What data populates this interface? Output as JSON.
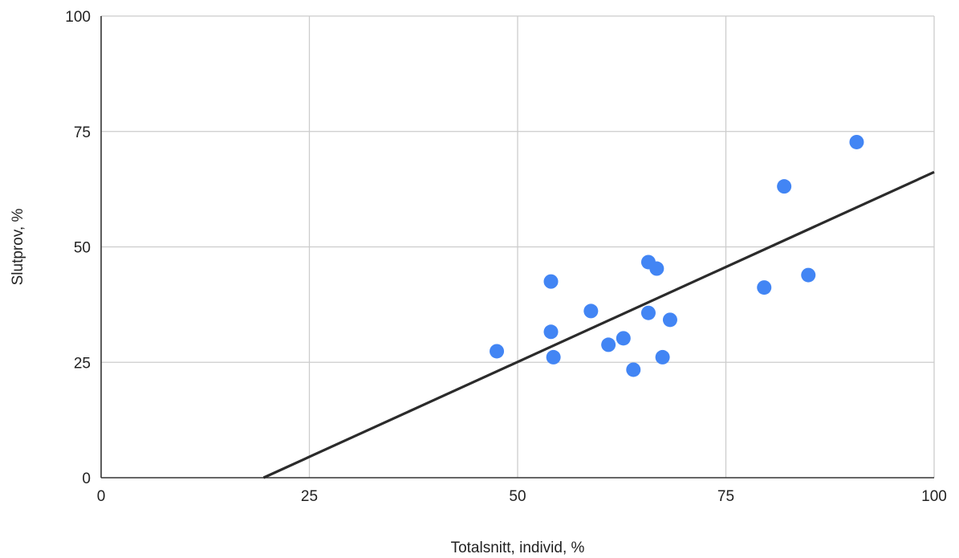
{
  "chart_data": {
    "type": "scatter",
    "title": "",
    "xlabel": "Totalsnitt, individ, %",
    "ylabel": "Slutprov, %",
    "xlim": [
      0,
      100
    ],
    "ylim": [
      0,
      100
    ],
    "xticks": [
      "0",
      "25",
      "50",
      "75",
      "100"
    ],
    "yticks": [
      "0",
      "25",
      "50",
      "75",
      "100"
    ],
    "grid": true,
    "legend": "none",
    "series": [
      {
        "points": [
          {
            "x": 47.5,
            "y": 27.4
          },
          {
            "x": 54.0,
            "y": 42.5
          },
          {
            "x": 54.0,
            "y": 31.6
          },
          {
            "x": 54.3,
            "y": 26.1
          },
          {
            "x": 58.8,
            "y": 36.1
          },
          {
            "x": 60.9,
            "y": 28.8
          },
          {
            "x": 62.7,
            "y": 30.2
          },
          {
            "x": 63.9,
            "y": 23.4
          },
          {
            "x": 65.7,
            "y": 46.7
          },
          {
            "x": 65.7,
            "y": 35.7
          },
          {
            "x": 66.7,
            "y": 45.3
          },
          {
            "x": 67.4,
            "y": 26.1
          },
          {
            "x": 68.3,
            "y": 34.2
          },
          {
            "x": 79.6,
            "y": 41.2
          },
          {
            "x": 82.0,
            "y": 63.1
          },
          {
            "x": 84.9,
            "y": 43.9
          },
          {
            "x": 90.7,
            "y": 72.7
          }
        ]
      }
    ],
    "trendline": {
      "type": "linear",
      "x_start": 19.5,
      "y_start": 0,
      "x_end": 100,
      "y_end": 66.2
    },
    "colors": {
      "points": "#4285f4",
      "trendline": "#2b2b2b",
      "grid": "#cccccc",
      "axis": "#333333"
    }
  }
}
